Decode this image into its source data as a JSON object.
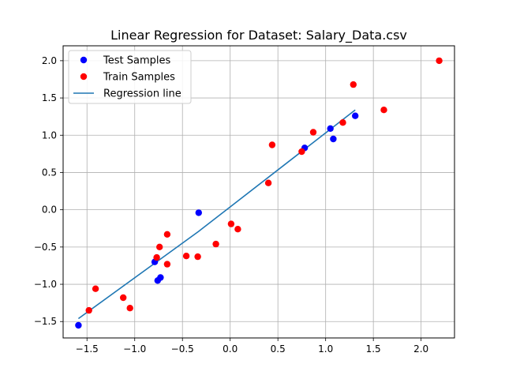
{
  "chart_data": {
    "type": "scatter",
    "title": "Linear Regression for Dataset: Salary_Data.csv",
    "xlabel": "",
    "ylabel": "",
    "xlim": [
      -1.75,
      2.35
    ],
    "ylim": [
      -1.72,
      2.2
    ],
    "x_ticks": [
      -1.5,
      -1.0,
      -0.5,
      0.0,
      0.5,
      1.0,
      1.5,
      2.0
    ],
    "x_tick_labels": [
      "−1.5",
      "−1.0",
      "−0.5",
      "0.0",
      "0.5",
      "1.0",
      "1.5",
      "2.0"
    ],
    "y_ticks": [
      -1.5,
      -1.0,
      -0.5,
      0.0,
      0.5,
      1.0,
      1.5,
      2.0
    ],
    "y_tick_labels": [
      "−1.5",
      "−1.0",
      "−0.5",
      "0.0",
      "0.5",
      "1.0",
      "1.5",
      "2.0"
    ],
    "grid": true,
    "legend_position": "top-left",
    "series": [
      {
        "name": "Test Samples",
        "kind": "scatter",
        "color": "#0000ff",
        "points": [
          [
            -1.59,
            -1.55
          ],
          [
            -0.79,
            -0.7
          ],
          [
            -0.76,
            -0.95
          ],
          [
            -0.73,
            -0.91
          ],
          [
            -0.33,
            -0.04
          ],
          [
            0.78,
            0.83
          ],
          [
            1.05,
            1.09
          ],
          [
            1.08,
            0.95
          ],
          [
            1.31,
            1.26
          ]
        ]
      },
      {
        "name": "Train Samples",
        "kind": "scatter",
        "color": "#ff0000",
        "points": [
          [
            -1.48,
            -1.35
          ],
          [
            -1.41,
            -1.06
          ],
          [
            -1.12,
            -1.18
          ],
          [
            -1.05,
            -1.32
          ],
          [
            -0.77,
            -0.64
          ],
          [
            -0.74,
            -0.5
          ],
          [
            -0.66,
            -0.33
          ],
          [
            -0.66,
            -0.73
          ],
          [
            -0.46,
            -0.62
          ],
          [
            -0.34,
            -0.63
          ],
          [
            -0.15,
            -0.46
          ],
          [
            0.01,
            -0.19
          ],
          [
            0.08,
            -0.26
          ],
          [
            0.4,
            0.36
          ],
          [
            0.44,
            0.87
          ],
          [
            0.75,
            0.78
          ],
          [
            0.87,
            1.04
          ],
          [
            1.18,
            1.17
          ],
          [
            1.29,
            1.68
          ],
          [
            1.61,
            1.34
          ],
          [
            2.19,
            2.0
          ]
        ]
      },
      {
        "name": "Regression line",
        "kind": "line",
        "color": "#1f77b4",
        "points": [
          [
            -1.59,
            -1.46
          ],
          [
            -0.33,
            -0.29
          ],
          [
            1.31,
            1.34
          ]
        ]
      }
    ]
  }
}
